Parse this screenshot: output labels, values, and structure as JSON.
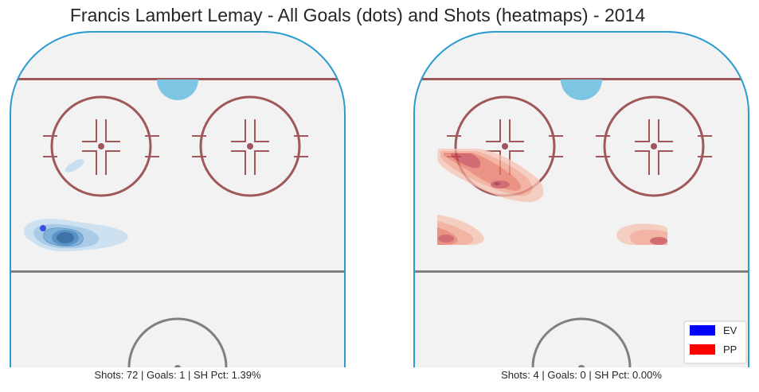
{
  "title": "Francis Lambert Lemay - All Goals (dots) and Shots (heatmaps) - 2014",
  "colors": {
    "ev": "#0000ff",
    "pp": "#ff0000",
    "ice": "#f2f2f2",
    "boards": "#2b9bd1",
    "red_line": "#a0575a",
    "blue_line": "#7f7f7f",
    "crease": "#7ec4e3"
  },
  "chart_data": [
    {
      "type": "heatmap",
      "panel": "left",
      "strength": "EV",
      "caption": "Shots: 72 | Goals: 1 | SH Pct: 1.39%",
      "shots": 72,
      "goals": 1,
      "sh_pct": 1.39,
      "color": "#0000ff",
      "goal_dots": [
        {
          "x": 54,
          "y": 287
        }
      ],
      "density_peaks": [
        {
          "x": 82,
          "y": 299,
          "level": 5
        },
        {
          "x": 92,
          "y": 206,
          "level": 1
        }
      ]
    },
    {
      "type": "heatmap",
      "panel": "right",
      "strength": "PP",
      "caption": "Shots: 4 | Goals: 0 | SH Pct: 0.00%",
      "shots": 4,
      "goals": 0,
      "sh_pct": 0.0,
      "color": "#ff0000",
      "goal_dots": [],
      "density_peaks": [
        {
          "x": 630,
          "y": 232,
          "level": 5
        },
        {
          "x": 585,
          "y": 195,
          "level": 4
        },
        {
          "x": 560,
          "y": 297,
          "level": 4
        },
        {
          "x": 825,
          "y": 302,
          "level": 3
        }
      ]
    }
  ],
  "legend": {
    "items": [
      {
        "label": "EV",
        "color": "#0000ff"
      },
      {
        "label": "PP",
        "color": "#ff0000"
      }
    ],
    "position": "lower-right"
  }
}
